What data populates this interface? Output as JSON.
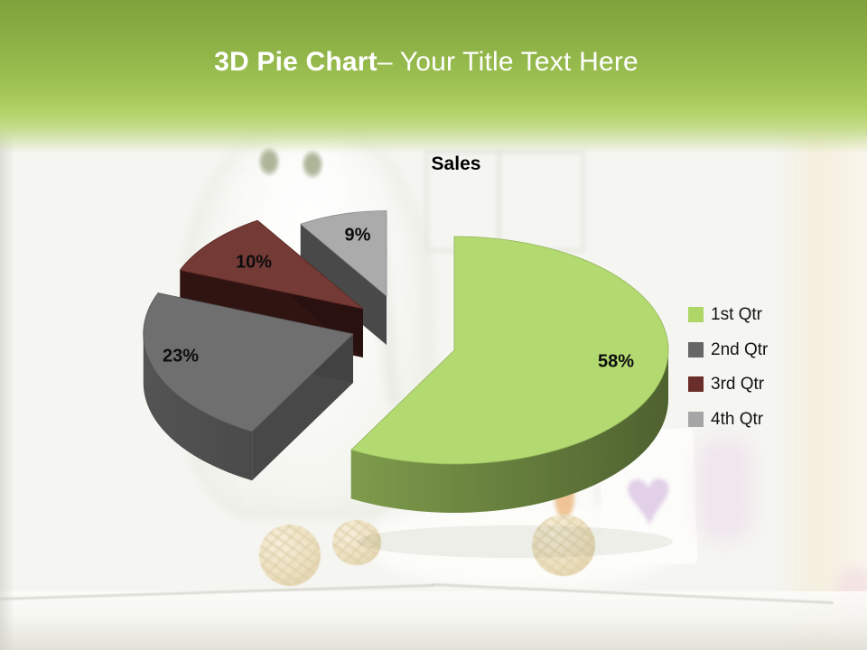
{
  "slide": {
    "title_bold": "3D Pie Chart",
    "title_rest": "– Your Title Text Here"
  },
  "chart_data": {
    "type": "pie",
    "title": "Sales",
    "is_3d": true,
    "exploded": true,
    "start_angle_deg": 0,
    "direction": "clockwise",
    "categories": [
      "1st Qtr",
      "2nd Qtr",
      "3rd Qtr",
      "4th Qtr"
    ],
    "values": [
      58,
      23,
      10,
      9
    ],
    "unit": "%",
    "labels": [
      "58%",
      "23%",
      "10%",
      "9%"
    ],
    "colors": [
      "#aed768",
      "#666666",
      "#6b2d29",
      "#a6a6a6"
    ],
    "legend_position": "right"
  }
}
